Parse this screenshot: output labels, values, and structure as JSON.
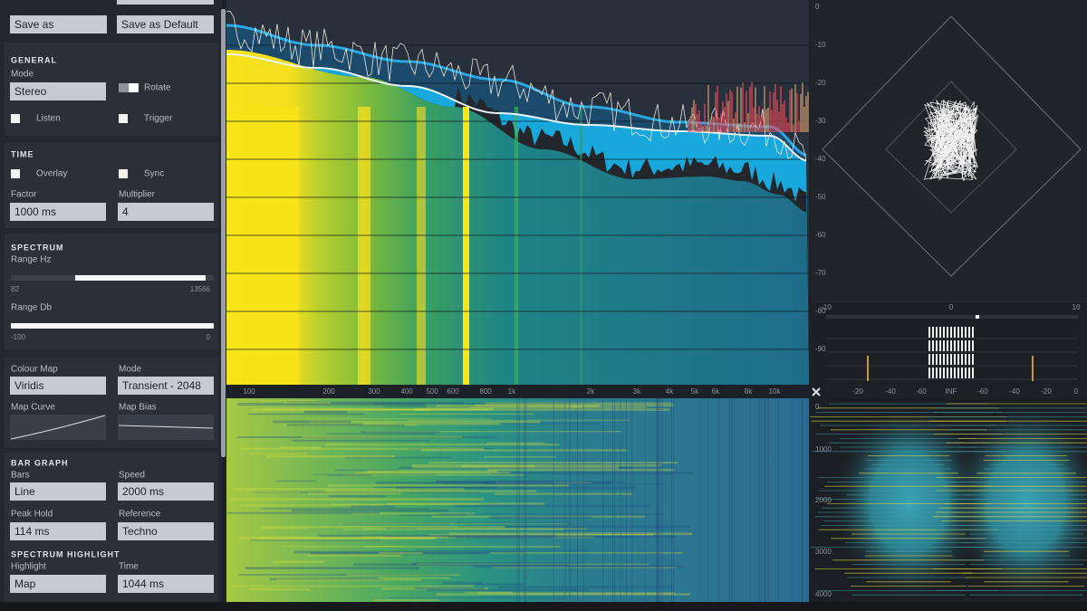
{
  "header": {
    "buttons": [
      "Save as",
      "Save as Default"
    ]
  },
  "general": {
    "title": "GENERAL",
    "mode_label": "Mode",
    "mode": "Stereo",
    "rotate": "Rotate",
    "listen": "Listen",
    "trigger": "Trigger"
  },
  "time": {
    "title": "TIME",
    "overlay": "Overlay",
    "sync": "Sync",
    "factor_label": "Factor",
    "factor": "1000 ms",
    "multiplier_label": "Multiplier",
    "multiplier": "4"
  },
  "spectrum": {
    "title": "SPECTRUM",
    "range_hz_label": "Range Hz",
    "range_hz_min": "82",
    "range_hz_max": "13566",
    "range_db_label": "Range Db",
    "range_db_min": "-100",
    "range_db_max": "0"
  },
  "colour_map": {
    "label": "Colour Map",
    "mode_label": "Mode",
    "map": "Viridis",
    "mode": "Transient - 2048",
    "curve_label": "Map Curve",
    "bias_label": "Map Bias"
  },
  "bar_graph": {
    "title": "BAR GRAPH",
    "bars_label": "Bars",
    "bars": "Line",
    "speed_label": "Speed",
    "speed": "2000 ms",
    "peak_hold_label": "Peak Hold",
    "peak_hold": "114 ms",
    "reference_label": "Reference",
    "reference": "Techno"
  },
  "spectrum_highlight": {
    "title": "SPECTRUM HIGHLIGHT",
    "highlight_label": "Highlight",
    "highlight": "Map",
    "time_label": "Time",
    "time": "1044 ms"
  },
  "analyzer": {
    "db_ticks": [
      "0",
      "-10",
      "-20",
      "-30",
      "-40",
      "-50",
      "-60",
      "-70",
      "-80",
      "-90"
    ],
    "freq_ticks": [
      "100",
      "200",
      "300",
      "400",
      "500",
      "600",
      "800",
      "1k",
      "2k",
      "3k",
      "4k",
      "5k",
      "6k",
      "8k",
      "10k"
    ]
  },
  "vectorscope": {
    "x_ticks": [
      "-10",
      "0",
      "10"
    ]
  },
  "meter": {
    "ticks": [
      "-20",
      "-40",
      "-60",
      "INF",
      "-60",
      "-40",
      "-20",
      "0"
    ]
  },
  "spectrogram_side": {
    "y_ticks": [
      "0",
      "1000",
      "2000",
      "3000",
      "4000"
    ]
  }
}
